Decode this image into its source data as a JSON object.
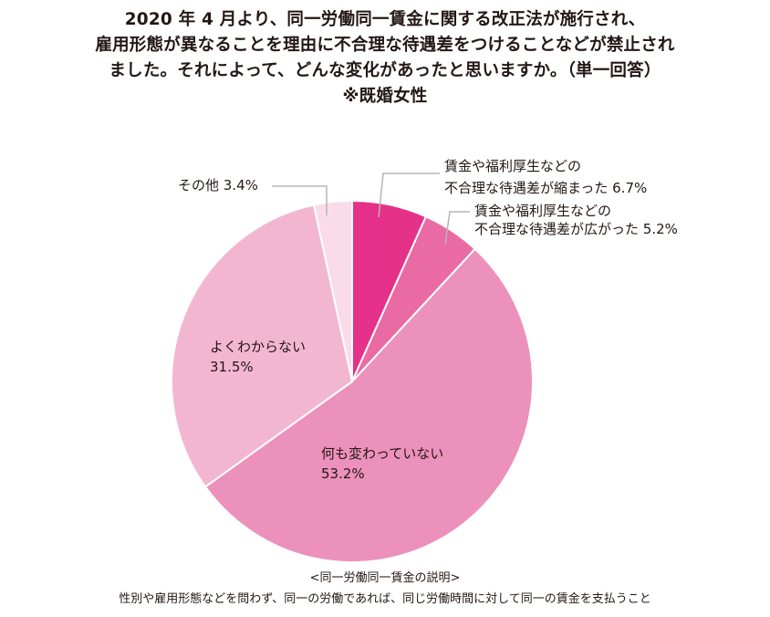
{
  "title_lines": [
    "2020 年 4 月より、同一労働同一賃金に関する改正法が施行され、",
    "雇用形態が異なることを理由に不合理な待遇差をつけることなどが禁止され",
    "ました。それによって、どんな変化があったと思いますか。（単一回答）",
    "※既婚女性"
  ],
  "chart_data": {
    "type": "pie",
    "slices": [
      {
        "label_lines": [
          "賃金や福利厚生などの",
          "不合理な待遇差が縮まった 6.7%"
        ],
        "value": 6.7,
        "color": "#e5318a"
      },
      {
        "label_lines": [
          "賃金や福利厚生などの",
          "不合理な待遇差が広がった 5.2%"
        ],
        "value": 5.2,
        "color": "#ea6aa3"
      },
      {
        "label_lines": [
          "何も変わっていない",
          "53.2%"
        ],
        "value": 53.2,
        "color": "#ec91bb"
      },
      {
        "label_lines": [
          "よくわからない",
          "31.5%"
        ],
        "value": 31.5,
        "color": "#f3b6d1"
      },
      {
        "label_lines": [
          "その他 3.4%"
        ],
        "value": 3.4,
        "color": "#fadbe8"
      }
    ],
    "start_angle_deg": 0,
    "direction": "clockwise",
    "leader_line_color": "#b5b5b5"
  },
  "footnote": {
    "heading": "<同一労働同一賃金の説明>",
    "text": "性別や雇用形態などを問わず、同一の労働であれば、同じ労働時間に対して同一の賃金を支払うこと"
  }
}
